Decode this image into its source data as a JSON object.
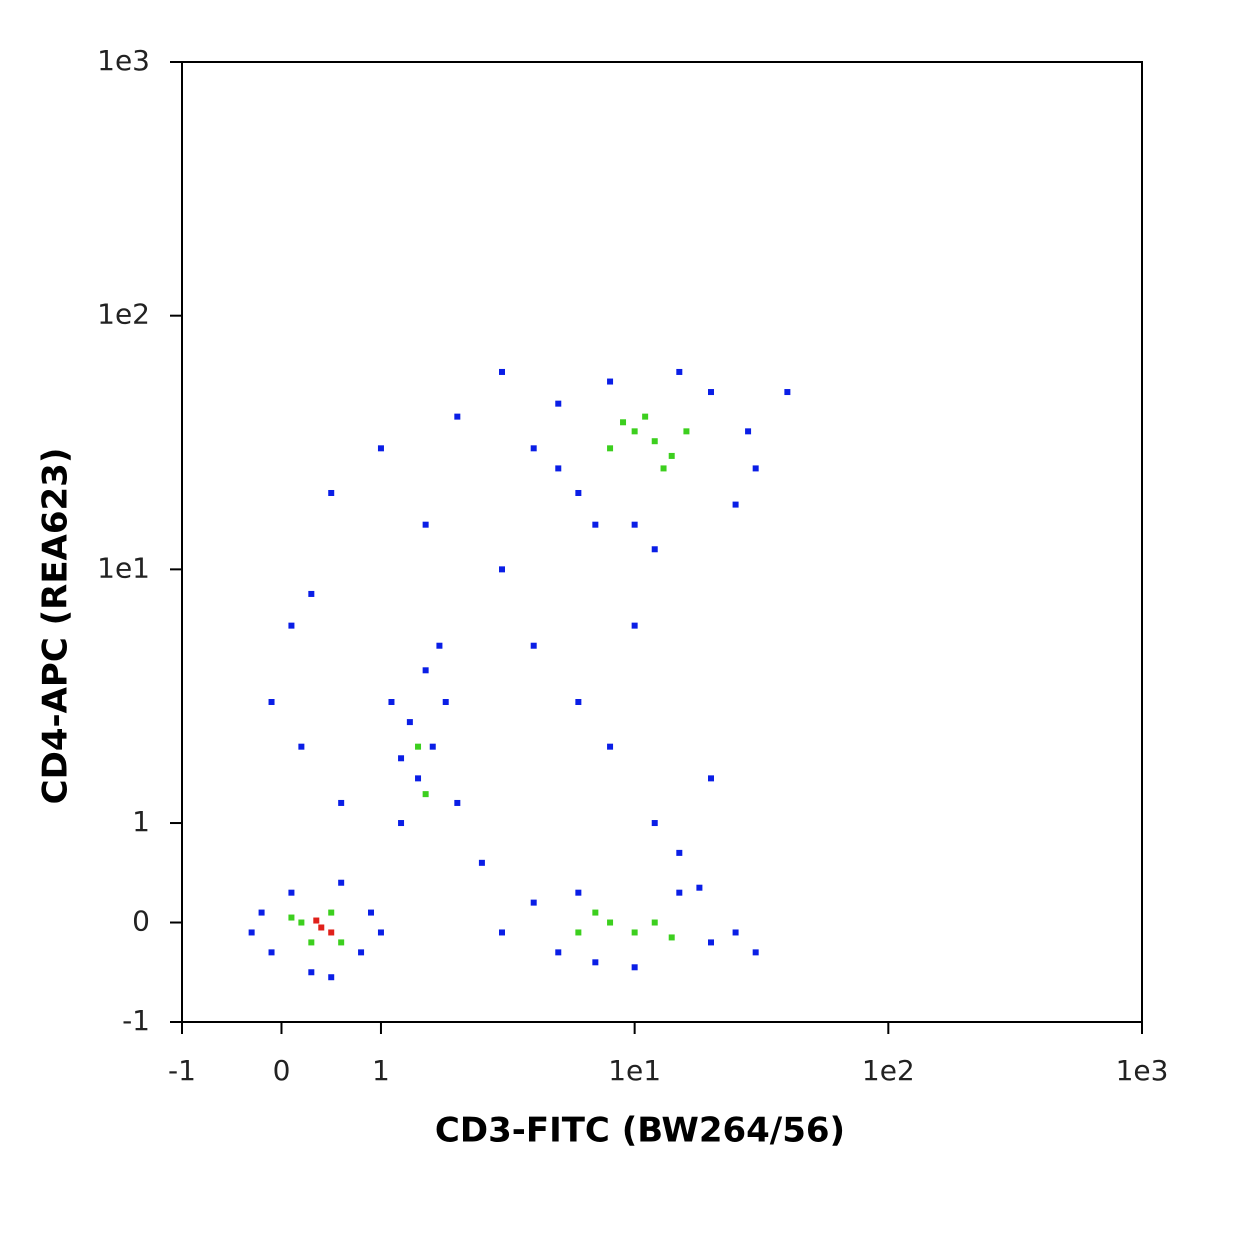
{
  "chart_data": {
    "type": "scatter",
    "x_label": "CD3-FITC (BW264/56)",
    "y_label": "CD4-APC (REA623)",
    "xlim": [
      -1,
      1000
    ],
    "ylim": [
      -1,
      1000
    ],
    "xticks": [
      -1,
      0,
      1,
      {
        "value": 10,
        "label": "1e1"
      },
      {
        "value": 100,
        "label": "1e2"
      },
      {
        "value": 1000,
        "label": "1e3"
      }
    ],
    "yticks": [
      -1,
      0,
      1,
      {
        "value": 10,
        "label": "1e1"
      },
      {
        "value": 100,
        "label": "1e2"
      },
      {
        "value": 1000,
        "label": "1e3"
      }
    ],
    "scale": "biexponential",
    "series": [
      {
        "color": "#0a1ee6",
        "x": [
          -0.3,
          -0.2,
          0.1,
          0.9,
          0.8,
          0.3,
          0.6,
          -0.1,
          1.0,
          0.5,
          1.2,
          1.4,
          1.6,
          1.3,
          1.8,
          1.5,
          1.2,
          2,
          1.7,
          1.1,
          3,
          4,
          5,
          6,
          15,
          20,
          25,
          18,
          10,
          7,
          30,
          4,
          5,
          6,
          8,
          10,
          15,
          20,
          28,
          30,
          25,
          12,
          7,
          5,
          40,
          0.2,
          0.1,
          0.5,
          1,
          2,
          0.3,
          3,
          4,
          6,
          8,
          10,
          12,
          20,
          15,
          2.5,
          0.6,
          -0.1,
          3,
          1.5
        ],
        "y": [
          -0.1,
          0.1,
          0.3,
          0.1,
          -0.3,
          -0.5,
          0.4,
          -0.3,
          -0.1,
          -0.55,
          1,
          1.5,
          2,
          2.5,
          3,
          4,
          1.8,
          1.2,
          5,
          3,
          -0.1,
          0.2,
          -0.3,
          0.3,
          0.3,
          -0.2,
          -0.1,
          0.35,
          -0.45,
          -0.4,
          -0.3,
          30,
          45,
          20,
          55,
          15,
          60,
          50,
          35,
          25,
          18,
          12,
          15,
          25,
          50,
          2,
          6,
          20,
          30,
          40,
          8,
          10,
          5,
          3,
          2,
          6,
          1,
          1.5,
          0.7,
          0.6,
          1.2,
          3,
          60,
          15
        ]
      },
      {
        "color": "#3ccf1e",
        "x": [
          0.2,
          0.5,
          0.6,
          0.3,
          0.1,
          1.4,
          1.5,
          6,
          8,
          10,
          12,
          7,
          14,
          8,
          10,
          12,
          14,
          16,
          11,
          9,
          13
        ],
        "y": [
          0,
          0.1,
          -0.2,
          -0.2,
          0.05,
          2,
          1.3,
          -0.1,
          0,
          -0.1,
          0,
          0.1,
          -0.15,
          30,
          35,
          32,
          28,
          35,
          40,
          38,
          25
        ]
      },
      {
        "color": "#e0201a",
        "x": [
          0.4,
          0.5,
          0.35
        ],
        "y": [
          -0.05,
          -0.1,
          0.02
        ]
      }
    ]
  }
}
